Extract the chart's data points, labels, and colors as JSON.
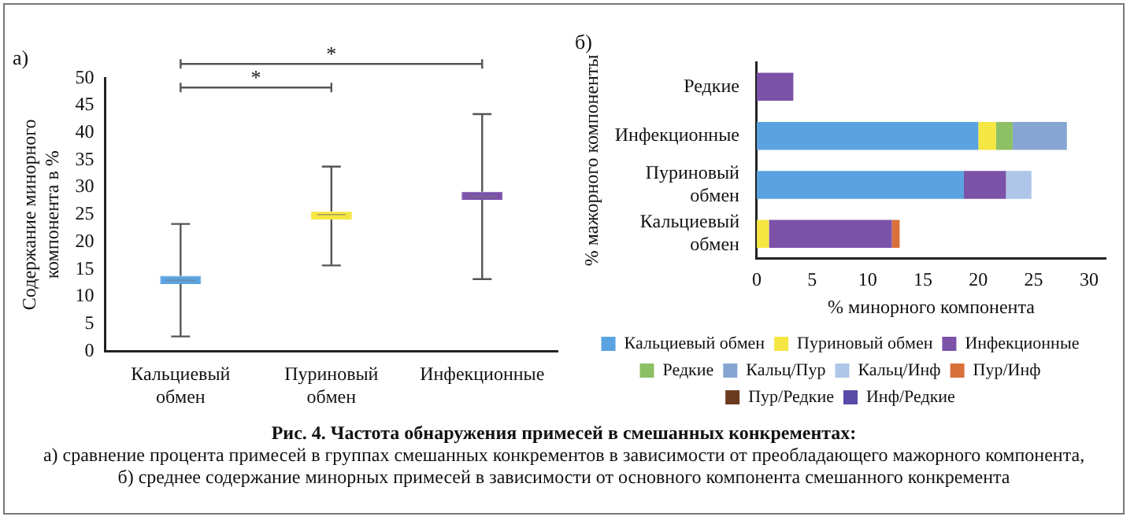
{
  "chart_data": [
    {
      "type": "box",
      "title": "а)",
      "ylabel": "Содержание минорного компонента в %",
      "categories": [
        "Кальциевый обмен",
        "Пуриновый обмен",
        "Инфекционные"
      ],
      "boxes": [
        {
          "low": 2.7,
          "q1": 12.3,
          "median": 13,
          "q3": 13.8,
          "high": 23.3
        },
        {
          "low": 15.7,
          "q1": 24.1,
          "median": 25,
          "q3": 25.6,
          "high": 33.8
        },
        {
          "low": 13.2,
          "q1": 27.7,
          "median": 28.3,
          "q3": 29.2,
          "high": 43.4
        }
      ],
      "colors": [
        "#5ba3e0",
        "#f5e642",
        "#7b52a8"
      ],
      "ylim": [
        0,
        50
      ],
      "yticks": [
        0,
        5,
        10,
        15,
        20,
        25,
        30,
        35,
        40,
        45,
        50
      ],
      "grid": false,
      "legend": false,
      "annotations": [
        "*",
        "*"
      ]
    },
    {
      "type": "bar",
      "orientation": "horizontal",
      "stacked": true,
      "title": "б)",
      "xlabel": "% минорного компонента",
      "ylabel": "% мажорного компоненты",
      "categories": [
        "Редкие",
        "Инфекционные",
        "Пуриновый обмен",
        "Кальциевый обмен"
      ],
      "series": [
        {
          "name": "Кальциевый обмен",
          "color": "#5ba3e0",
          "values": [
            0,
            20,
            18.7,
            0
          ]
        },
        {
          "name": "Пуриновый обмен",
          "color": "#f5e642",
          "values": [
            0,
            1.6,
            0,
            1.1
          ]
        },
        {
          "name": "Инфекционные",
          "color": "#7b52a8",
          "values": [
            3.3,
            0,
            3.8,
            11.1
          ]
        },
        {
          "name": "Редкие",
          "color": "#8cc063",
          "values": [
            0,
            1.5,
            0,
            0
          ]
        },
        {
          "name": "Кальц/Пур",
          "color": "#87a5d3",
          "values": [
            0,
            4.9,
            0,
            0
          ]
        },
        {
          "name": "Кальц/Инф",
          "color": "#aec6e8",
          "values": [
            null,
            0,
            2.3,
            null
          ]
        },
        {
          "name": "Пур/Инф",
          "color": "#d9703a",
          "values": [
            0,
            0,
            0,
            0.7
          ]
        },
        {
          "name": "Пур/Редкие",
          "color": "#6b3a1f",
          "values": [
            0,
            0,
            0,
            0
          ]
        },
        {
          "name": "Инф/Редкие",
          "color": "#5a4aa8",
          "values": [
            0,
            0,
            0,
            0
          ]
        }
      ],
      "xlim": [
        0,
        31.5
      ],
      "xticks": [
        0,
        5,
        10,
        15,
        20,
        25,
        30
      ],
      "grid": false,
      "legend": "bottom"
    },
    {
      "type": "other",
      "annotations": [
        "Рис. 4. Частота обнаружения примесей в смешанных конкрементах:",
        "а) сравнение процента примесей в группах смешанных конкрементов в зависимости от преобладающего мажорного компонента,",
        "б) среднее содержание минорных примесей в зависимости от основного компонента смешанного конкремента"
      ]
    }
  ]
}
